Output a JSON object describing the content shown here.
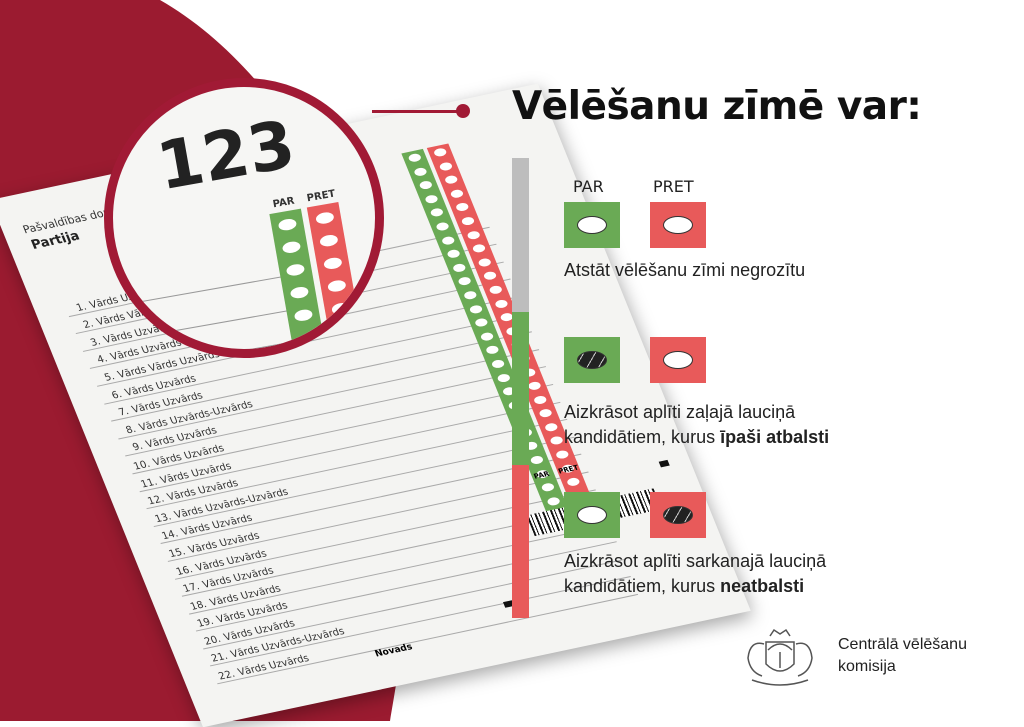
{
  "colors": {
    "brand_red": "#9b1b30",
    "green": "#6aaa55",
    "red": "#e85a5a",
    "gray": "#bdbdbd"
  },
  "ballot": {
    "header": "Pašvaldības domes vēl",
    "party": "Partija",
    "magnified_number": "123",
    "par": "PAR",
    "pret": "PRET",
    "footer": "Novads",
    "candidates": [
      "Vārds Uzvārds",
      "Vārds Vārds Uzvārds-Uzvārds",
      "Vārds Uzvārds",
      "Vārds Uzvārds",
      "Vārds Vārds Uzvārds",
      "Vārds Uzvārds",
      "Vārds Uzvārds",
      "Vārds Uzvārds-Uzvārds",
      "Vārds Uzvārds",
      "Vārds Uzvārds",
      "Vārds Uzvārds",
      "Vārds Uzvārds",
      "Vārds Uzvārds-Uzvārds",
      "Vārds Uzvārds",
      "Vārds Uzvārds",
      "Vārds Uzvārds",
      "Vārds Uzvārds",
      "Vārds Uzvārds",
      "Vārds Uzvārds",
      "Vārds Uzvārds",
      "Vārds Uzvārds-Uzvārds",
      "Vārds Uzvārds"
    ]
  },
  "info": {
    "title": "Vēlēšanu zīmē var:",
    "par": "PAR",
    "pret": "PRET",
    "option1": "Atstāt vēlēšanu zīmi negrozītu",
    "option2_a": "Aizkrāsot aplīti zaļajā lauciņā",
    "option2_b": "kandidātiem, kurus ",
    "option2_bold": "īpaši atbalsti",
    "option3_a": "Aizkrāsot aplīti sarkanajā lauciņā",
    "option3_b": "kandidātiem, kurus ",
    "option3_bold": "neatbalsti"
  },
  "logo": {
    "line1": "Centrālā vēlēšanu",
    "line2": "komisija",
    "emblem": "latvia-coat-of-arms"
  }
}
